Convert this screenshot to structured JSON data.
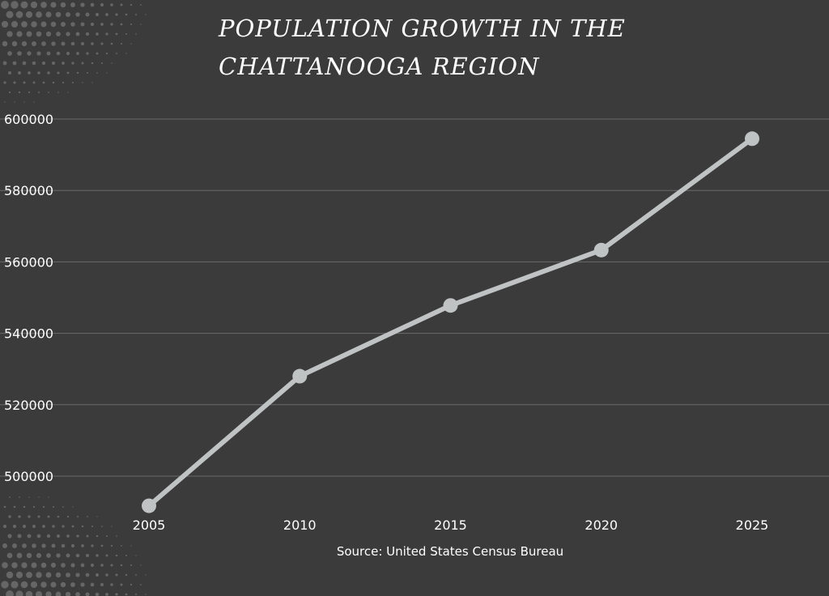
{
  "chart_data": {
    "type": "line",
    "title": "POPULATION GROWTH IN THE CHATTANOOGA REGION",
    "source": "Source: United States Census Bureau",
    "x": [
      "2005",
      "2010",
      "2015",
      "2020",
      "2025"
    ],
    "series": [
      {
        "values": [
          491700,
          528000,
          547800,
          563300,
          594500
        ]
      }
    ],
    "y_ticks": [
      500000,
      520000,
      540000,
      560000,
      580000,
      600000
    ],
    "ylim": [
      485000,
      600000
    ],
    "grid": "horizontal",
    "legend": "none",
    "colors": {
      "background": "#3b3b3b",
      "line": "#c0c3c4",
      "gridline": "#6a6a6a",
      "text": "#ffffff",
      "halftone": "#8a8a8a"
    }
  }
}
